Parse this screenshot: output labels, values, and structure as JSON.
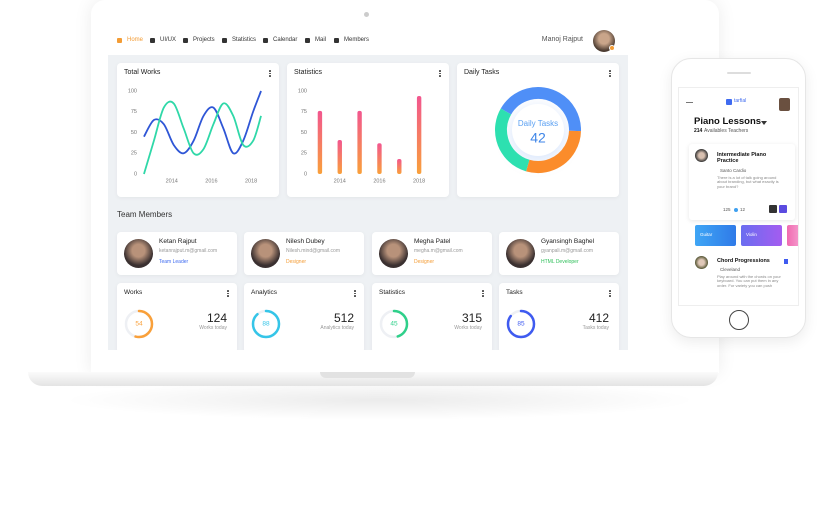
{
  "nav": {
    "items": [
      "Home",
      "UI/UX",
      "Projects",
      "Statistics",
      "Calendar",
      "Mail",
      "Members"
    ],
    "user": "Manoj Rajput"
  },
  "total_works": {
    "type": "line",
    "title": "Total Works",
    "x": [
      2012.6,
      2013.1,
      2013.6,
      2014.1,
      2014.6,
      2015.1,
      2015.6,
      2016.1,
      2016.6,
      2017.1,
      2017.6,
      2018.1,
      2018.5
    ],
    "series": [
      {
        "color": "#2f56d6",
        "values": [
          45,
          65,
          60,
          35,
          25,
          40,
          70,
          80,
          55,
          25,
          40,
          75,
          100
        ]
      },
      {
        "color": "#2fd8a8",
        "values": [
          0,
          40,
          80,
          85,
          55,
          25,
          30,
          60,
          85,
          70,
          35,
          40,
          70
        ]
      }
    ],
    "xlim": [
      2012.4,
      2018.7
    ],
    "xticks": [
      2014,
      2016,
      2018
    ],
    "ylim": [
      0,
      100
    ],
    "yticks": [
      0,
      25,
      50,
      75,
      100
    ]
  },
  "statistics": {
    "type": "bar",
    "title": "Statistics",
    "x": [
      2013,
      2014,
      2015,
      2016,
      2017,
      2018
    ],
    "values": [
      76,
      41,
      76,
      37,
      18,
      94
    ],
    "colors": [
      "#f2568f",
      "#f9a03a"
    ],
    "xlim": [
      2012.5,
      2018.8
    ],
    "xticks": [
      2014,
      2016,
      2018
    ],
    "ylim": [
      0,
      100
    ],
    "yticks": [
      0,
      25,
      50,
      75,
      100
    ]
  },
  "daily_tasks": {
    "type": "donut",
    "title": "Daily Tasks",
    "label": "Daily Tasks",
    "value": 42,
    "segments": [
      {
        "color": "#4f8ff7",
        "value": 42
      },
      {
        "color": "#fb8c2b",
        "value": 29
      },
      {
        "color": "#2de0b0",
        "value": 29
      }
    ]
  },
  "team": {
    "title": "Team Members",
    "members": [
      {
        "name": "Ketan Rajput",
        "email": "ketanrajput.m@gmail.com",
        "role": "Team Leader",
        "role_color": "#3f6bf0"
      },
      {
        "name": "Nilesh Dubey",
        "email": "Nilesh.mind@gmail.com",
        "role": "Designer",
        "role_color": "#f39c35"
      },
      {
        "name": "Megha Patel",
        "email": "megha.m@gmail.com",
        "role": "Designer",
        "role_color": "#f39c35"
      },
      {
        "name": "Gyansingh Baghel",
        "email": "gyanpali.m@gmail.com",
        "role": "HTML Developer",
        "role_color": "#2fbf5a"
      }
    ]
  },
  "stats": [
    {
      "title": "Works",
      "progress": 54,
      "total": 124,
      "caption": "Works today",
      "color": "#f9a03a"
    },
    {
      "title": "Analytics",
      "progress": 88,
      "total": 512,
      "caption": "Analytics today",
      "color": "#35c5e8"
    },
    {
      "title": "Statistics",
      "progress": 45,
      "total": 315,
      "caption": "Works today",
      "color": "#2fd08a"
    },
    {
      "title": "Tasks",
      "progress": 85,
      "total": 412,
      "caption": "Tasks today",
      "color": "#3f5bf0"
    }
  ],
  "phone": {
    "brand": "tarfial",
    "title": "Piano Lessons",
    "teacher_count": 214,
    "teacher_label": "Availables Teachers",
    "lesson": {
      "title": "Intermediate Piano Practice",
      "teacher": "Santo Cardio",
      "text": "There is a lot of talk going around about branding, but what exactly is your brand?",
      "likes": 125,
      "comments": 12
    },
    "tiles": [
      "Guitar",
      "Violin"
    ],
    "lesson2": {
      "title": "Chord Progressions",
      "teacher": "Cleveland",
      "text": "Play around with the chords on your keyboard. You can put them in any order. For variety you can push"
    }
  }
}
